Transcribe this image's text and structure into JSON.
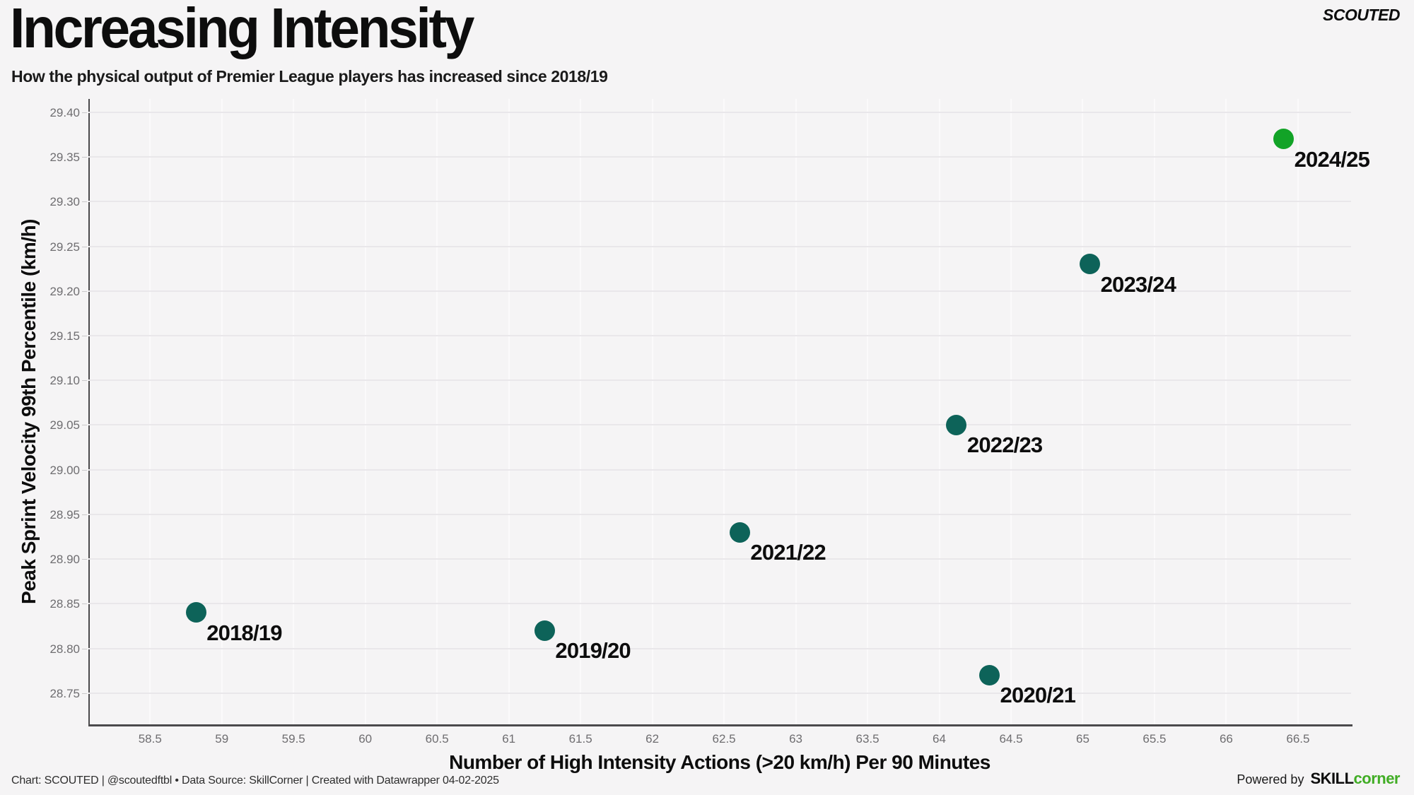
{
  "header": {
    "title": "Increasing Intensity",
    "subtitle": "How the physical output of Premier League players has increased since 2018/19",
    "brand": "SCOUTED"
  },
  "chart_data": {
    "type": "scatter",
    "title": "Increasing Intensity",
    "subtitle": "How the physical output of Premier League players has increased since 2018/19",
    "xlabel": "Number of High Intensity Actions (>20 km/h) Per 90 Minutes",
    "ylabel": "Peak Sprint Velocity 99th Percentile (km/h)",
    "xlim": [
      58.07,
      66.87
    ],
    "ylim": [
      28.715,
      29.415
    ],
    "grid": true,
    "legend": "none",
    "x_ticks": [
      {
        "value": 58.5,
        "label": "58.5"
      },
      {
        "value": 59,
        "label": "59"
      },
      {
        "value": 59.5,
        "label": "59.5"
      },
      {
        "value": 60,
        "label": "60"
      },
      {
        "value": 60.5,
        "label": "60.5"
      },
      {
        "value": 61,
        "label": "61"
      },
      {
        "value": 61.5,
        "label": "61.5"
      },
      {
        "value": 62,
        "label": "62"
      },
      {
        "value": 62.5,
        "label": "62.5"
      },
      {
        "value": 63,
        "label": "63"
      },
      {
        "value": 63.5,
        "label": "63.5"
      },
      {
        "value": 64,
        "label": "64"
      },
      {
        "value": 64.5,
        "label": "64.5"
      },
      {
        "value": 65,
        "label": "65"
      },
      {
        "value": 65.5,
        "label": "65.5"
      },
      {
        "value": 66,
        "label": "66"
      },
      {
        "value": 66.5,
        "label": "66.5"
      }
    ],
    "y_ticks": [
      {
        "value": 28.75,
        "label": "28.75"
      },
      {
        "value": 28.8,
        "label": "28.80"
      },
      {
        "value": 28.85,
        "label": "28.85"
      },
      {
        "value": 28.9,
        "label": "28.90"
      },
      {
        "value": 28.95,
        "label": "28.95"
      },
      {
        "value": 29.0,
        "label": "29.00"
      },
      {
        "value": 29.05,
        "label": "29.05"
      },
      {
        "value": 29.1,
        "label": "29.10"
      },
      {
        "value": 29.15,
        "label": "29.15"
      },
      {
        "value": 29.2,
        "label": "29.20"
      },
      {
        "value": 29.25,
        "label": "29.25"
      },
      {
        "value": 29.3,
        "label": "29.30"
      },
      {
        "value": 29.35,
        "label": "29.35"
      },
      {
        "value": 29.4,
        "label": "29.40"
      }
    ],
    "points": [
      {
        "label": "2018/19",
        "x": 58.82,
        "y": 28.84,
        "color": "#0d6359"
      },
      {
        "label": "2019/20",
        "x": 61.25,
        "y": 28.82,
        "color": "#0d6359"
      },
      {
        "label": "2020/21",
        "x": 64.35,
        "y": 28.77,
        "color": "#0d6359"
      },
      {
        "label": "2021/22",
        "x": 62.61,
        "y": 28.93,
        "color": "#0d6359"
      },
      {
        "label": "2022/23",
        "x": 64.12,
        "y": 29.05,
        "color": "#0d6359"
      },
      {
        "label": "2023/24",
        "x": 65.05,
        "y": 29.23,
        "color": "#0d6359"
      },
      {
        "label": "2024/25",
        "x": 66.4,
        "y": 29.37,
        "color": "#12a327"
      }
    ],
    "colors": {
      "dot_teal": "#0d6359",
      "dot_green": "#12a327",
      "background": "#f5f4f5"
    }
  },
  "footer": {
    "credit": "Chart: SCOUTED | @scoutedftbl • Data Source: SkillCorner | Created with Datawrapper 04-02-2025",
    "powered_by": "Powered by",
    "powered_brand_dark": "SKILL",
    "powered_brand_green": "corner",
    "powered_brand_green_color": "#41ad25"
  }
}
